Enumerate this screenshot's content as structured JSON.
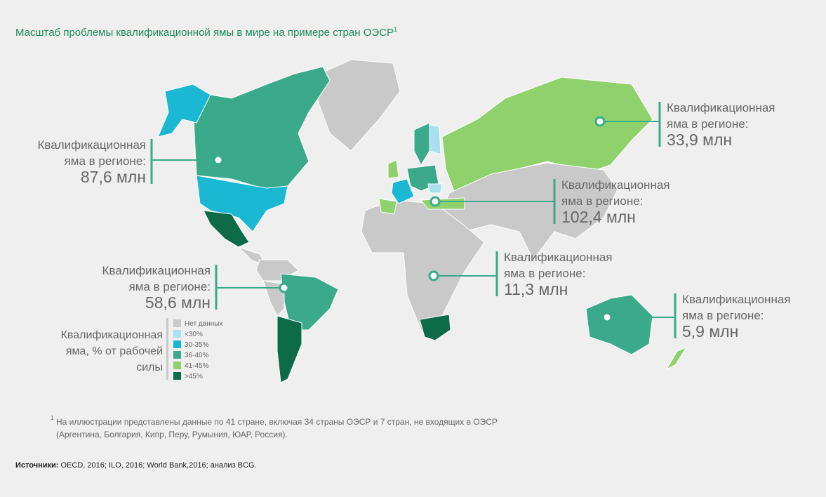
{
  "header": {
    "title": "Масштаб проблемы квалификационной ямы в мире на примере стран ОЭСР",
    "title_note": "1"
  },
  "callouts": [
    {
      "label_lines": [
        "Квалификационная",
        "яма в регионе:"
      ],
      "value": "87,6 млн"
    },
    {
      "label_lines": [
        "Квалификационная",
        "яма в регионе:"
      ],
      "value": "33,9 млн"
    },
    {
      "label_lines": [
        "Квалификационная",
        "яма в регионе:"
      ],
      "value": "102,4 млн"
    },
    {
      "label_lines": [
        "Квалификационная",
        "яма в регионе:"
      ],
      "value": "11,3 млн"
    },
    {
      "label_lines": [
        "Квалификационная",
        "яма в регионе:"
      ],
      "value": "5,9 млн"
    },
    {
      "label_lines": [
        "Квалификационная",
        "яма в регионе:"
      ],
      "value": "58,6 млн"
    }
  ],
  "legend": {
    "title_lines": [
      "Квалификационная",
      "яма, % от рабочей",
      "силы"
    ],
    "items": [
      {
        "label": "Нет данных",
        "color": "#c9c9c9"
      },
      {
        "label": "<30%",
        "color": "#a9e0ef"
      },
      {
        "label": "30-35%",
        "color": "#1ab8d2"
      },
      {
        "label": "36-40%",
        "color": "#3aaa8a"
      },
      {
        "label": "41-45%",
        "color": "#8fd16a"
      },
      {
        "label": ">45%",
        "color": "#0d6b4a"
      }
    ]
  },
  "footnote": {
    "marker": "1",
    "lines": [
      "На иллюстрации представлены данные по 41 стране, включая 34 страны ОЭСР и 7 стран, не входящих в ОЭСР",
      "(Аргентина, Болгария, Кипр, Перу, Румыния, ЮАР, Россия)."
    ]
  },
  "sources": {
    "label": "Источники:",
    "text": "OECD, 2016; ILO, 2016; World Bank,2016; анализ BCG."
  }
}
